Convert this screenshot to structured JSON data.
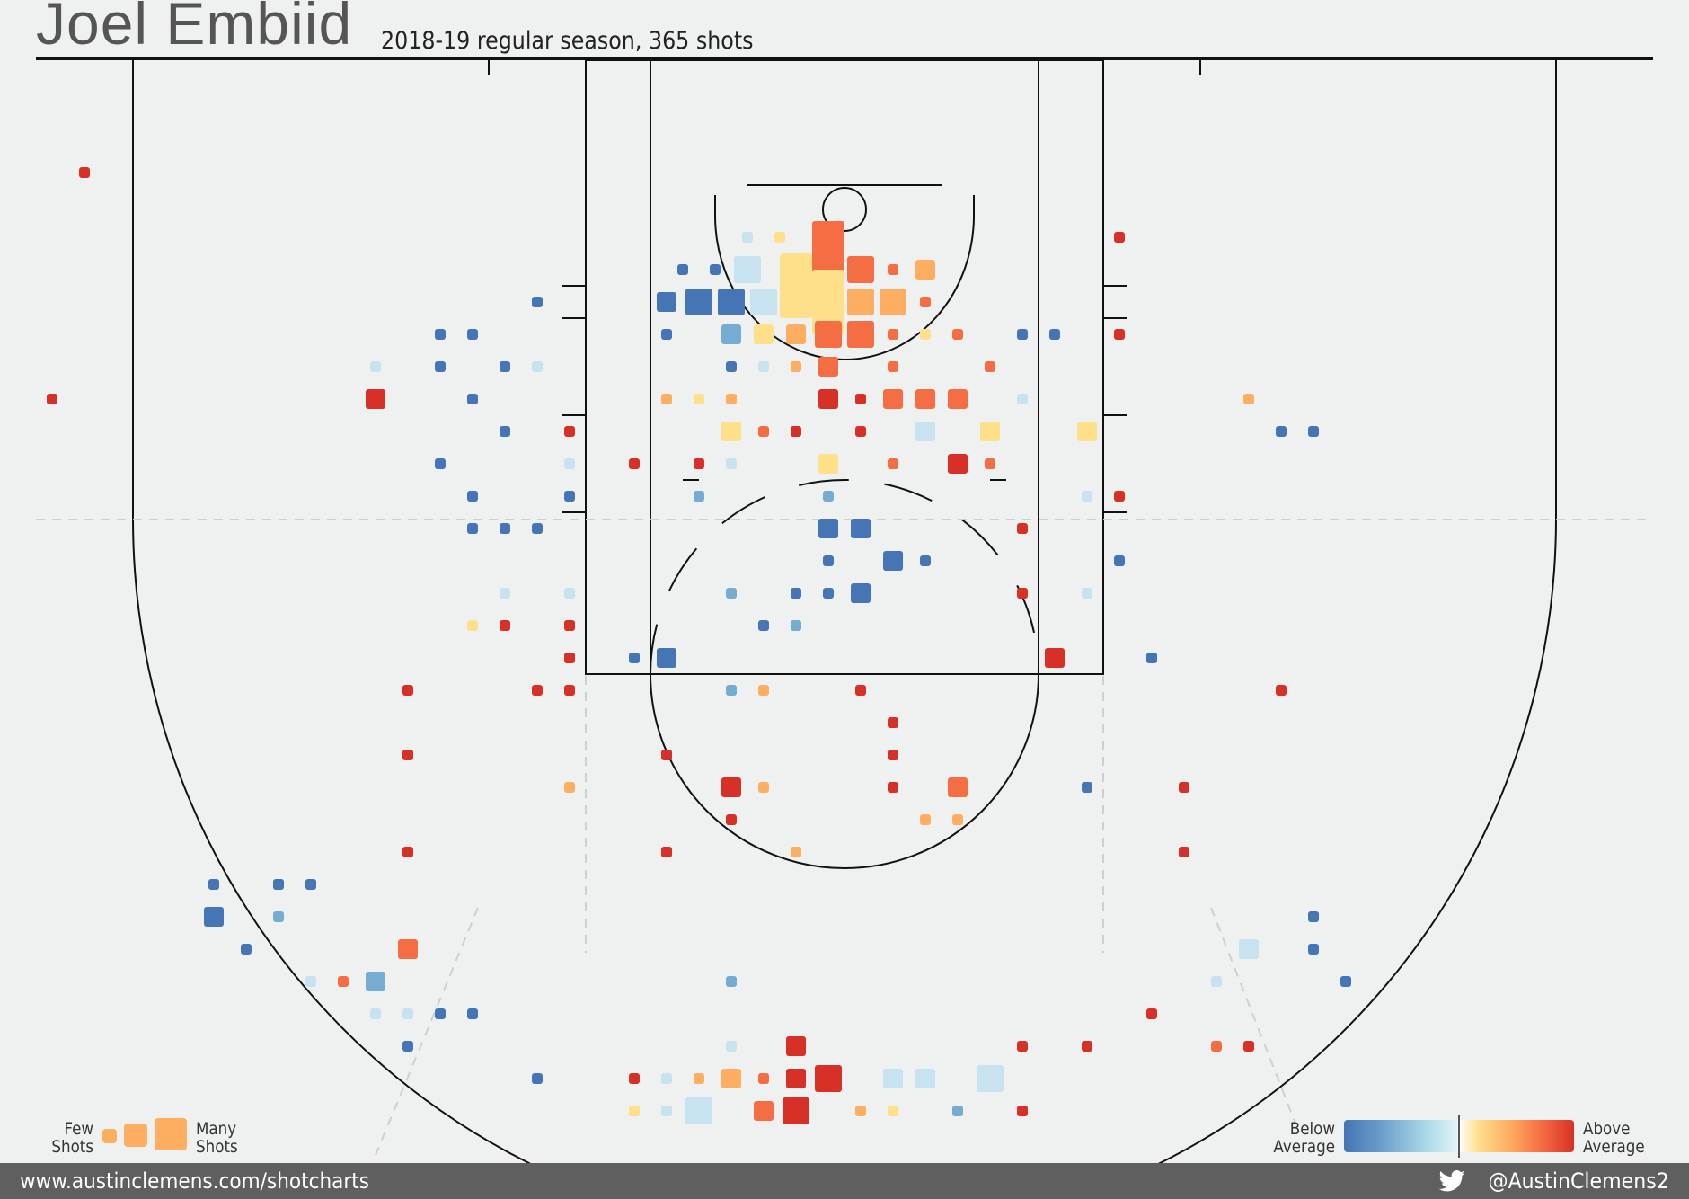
{
  "header": {
    "title": "Joel Embiid",
    "subtitle": "2018-19 regular season, 365 shots"
  },
  "footer": {
    "website": "www.austinclemens.com/shotcharts",
    "twitter": "@AustinClemens2"
  },
  "legend": {
    "size_low": "Few\nShots",
    "size_high": "Many\nShots",
    "color_low": "Below\nAverage",
    "color_high": "Above\nAverage"
  },
  "colors": {
    "vb": "#4575b4",
    "b": "#74add1",
    "lb": "#c6e3ef",
    "ly": "#fee08b",
    "o": "#fdae61",
    "ro": "#f46d43",
    "r": "#d73027"
  },
  "chart_data": {
    "type": "heatmap",
    "description_units": "court grid: x = column index (0-51), y = row index (0-30), size = 1 small to 4 large, c = shooting vs league average category",
    "color_scale": [
      "vb",
      "b",
      "lb",
      "ly",
      "o",
      "ro",
      "r"
    ],
    "cells": [
      {
        "x": 2.5,
        "y": 3,
        "s": 1,
        "c": "r"
      },
      {
        "x": 34.5,
        "y": 5,
        "s": 1,
        "c": "r"
      },
      {
        "x": 23,
        "y": 5,
        "s": 1,
        "c": "lb"
      },
      {
        "x": 24,
        "y": 5,
        "s": 1,
        "c": "ly"
      },
      {
        "x": 25.5,
        "y": 5.5,
        "s": 4,
        "c": "ro"
      },
      {
        "x": 21,
        "y": 6,
        "s": 1,
        "c": "vb"
      },
      {
        "x": 22,
        "y": 6,
        "s": 1,
        "c": "vb"
      },
      {
        "x": 23,
        "y": 6,
        "s": 3,
        "c": "lb"
      },
      {
        "x": 24.5,
        "y": 6.5,
        "s": 4,
        "c": "ly"
      },
      {
        "x": 25.5,
        "y": 7,
        "s": 4,
        "c": "ly"
      },
      {
        "x": 26.5,
        "y": 6,
        "s": 3,
        "c": "ro"
      },
      {
        "x": 27.5,
        "y": 6,
        "s": 1,
        "c": "ro"
      },
      {
        "x": 28.5,
        "y": 6,
        "s": 2,
        "c": "o"
      },
      {
        "x": 16.5,
        "y": 7,
        "s": 1,
        "c": "vb"
      },
      {
        "x": 20.5,
        "y": 7,
        "s": 2,
        "c": "vb"
      },
      {
        "x": 21.5,
        "y": 7,
        "s": 3,
        "c": "vb"
      },
      {
        "x": 22.5,
        "y": 7,
        "s": 3,
        "c": "vb"
      },
      {
        "x": 23.5,
        "y": 7,
        "s": 3,
        "c": "lb"
      },
      {
        "x": 26.5,
        "y": 7,
        "s": 3,
        "c": "o"
      },
      {
        "x": 27.5,
        "y": 7,
        "s": 3,
        "c": "o"
      },
      {
        "x": 28.5,
        "y": 7,
        "s": 1,
        "c": "ro"
      },
      {
        "x": 13.5,
        "y": 8,
        "s": 1,
        "c": "vb"
      },
      {
        "x": 14.5,
        "y": 8,
        "s": 1,
        "c": "vb"
      },
      {
        "x": 20.5,
        "y": 8,
        "s": 1,
        "c": "vb"
      },
      {
        "x": 22.5,
        "y": 8,
        "s": 2,
        "c": "b"
      },
      {
        "x": 23.5,
        "y": 8,
        "s": 2,
        "c": "ly"
      },
      {
        "x": 24.5,
        "y": 8,
        "s": 2,
        "c": "o"
      },
      {
        "x": 25.5,
        "y": 8,
        "s": 3,
        "c": "ro"
      },
      {
        "x": 26.5,
        "y": 8,
        "s": 3,
        "c": "ro"
      },
      {
        "x": 27.5,
        "y": 8,
        "s": 1,
        "c": "ro"
      },
      {
        "x": 28.5,
        "y": 8,
        "s": 1,
        "c": "ly"
      },
      {
        "x": 29.5,
        "y": 8,
        "s": 1,
        "c": "ro"
      },
      {
        "x": 31.5,
        "y": 8,
        "s": 1,
        "c": "vb"
      },
      {
        "x": 32.5,
        "y": 8,
        "s": 1,
        "c": "vb"
      },
      {
        "x": 34.5,
        "y": 8,
        "s": 1,
        "c": "r"
      },
      {
        "x": 11.5,
        "y": 9,
        "s": 1,
        "c": "lb"
      },
      {
        "x": 13.5,
        "y": 9,
        "s": 1,
        "c": "vb"
      },
      {
        "x": 15.5,
        "y": 9,
        "s": 1,
        "c": "vb"
      },
      {
        "x": 16.5,
        "y": 9,
        "s": 1,
        "c": "lb"
      },
      {
        "x": 22.5,
        "y": 9,
        "s": 1,
        "c": "vb"
      },
      {
        "x": 23.5,
        "y": 9,
        "s": 1,
        "c": "lb"
      },
      {
        "x": 24.5,
        "y": 9,
        "s": 1,
        "c": "o"
      },
      {
        "x": 25.5,
        "y": 9,
        "s": 2,
        "c": "ro"
      },
      {
        "x": 27.5,
        "y": 9,
        "s": 1,
        "c": "ro"
      },
      {
        "x": 30.5,
        "y": 9,
        "s": 1,
        "c": "ro"
      },
      {
        "x": 1.5,
        "y": 10,
        "s": 1,
        "c": "r"
      },
      {
        "x": 11.5,
        "y": 10,
        "s": 2,
        "c": "r"
      },
      {
        "x": 14.5,
        "y": 10,
        "s": 1,
        "c": "vb"
      },
      {
        "x": 20.5,
        "y": 10,
        "s": 1,
        "c": "o"
      },
      {
        "x": 21.5,
        "y": 10,
        "s": 1,
        "c": "ly"
      },
      {
        "x": 22.5,
        "y": 10,
        "s": 1,
        "c": "o"
      },
      {
        "x": 25.5,
        "y": 10,
        "s": 2,
        "c": "r"
      },
      {
        "x": 26.5,
        "y": 10,
        "s": 1,
        "c": "r"
      },
      {
        "x": 27.5,
        "y": 10,
        "s": 2,
        "c": "ro"
      },
      {
        "x": 28.5,
        "y": 10,
        "s": 2,
        "c": "ro"
      },
      {
        "x": 29.5,
        "y": 10,
        "s": 2,
        "c": "ro"
      },
      {
        "x": 31.5,
        "y": 10,
        "s": 1,
        "c": "lb"
      },
      {
        "x": 38.5,
        "y": 10,
        "s": 1,
        "c": "o"
      },
      {
        "x": 15.5,
        "y": 11,
        "s": 1,
        "c": "vb"
      },
      {
        "x": 17.5,
        "y": 11,
        "s": 1,
        "c": "r"
      },
      {
        "x": 22.5,
        "y": 11,
        "s": 2,
        "c": "ly"
      },
      {
        "x": 23.5,
        "y": 11,
        "s": 1,
        "c": "ro"
      },
      {
        "x": 24.5,
        "y": 11,
        "s": 1,
        "c": "r"
      },
      {
        "x": 26.5,
        "y": 11,
        "s": 1,
        "c": "r"
      },
      {
        "x": 28.5,
        "y": 11,
        "s": 2,
        "c": "lb"
      },
      {
        "x": 30.5,
        "y": 11,
        "s": 2,
        "c": "ly"
      },
      {
        "x": 33.5,
        "y": 11,
        "s": 2,
        "c": "ly"
      },
      {
        "x": 39.5,
        "y": 11,
        "s": 1,
        "c": "vb"
      },
      {
        "x": 40.5,
        "y": 11,
        "s": 1,
        "c": "vb"
      },
      {
        "x": 13.5,
        "y": 12,
        "s": 1,
        "c": "vb"
      },
      {
        "x": 17.5,
        "y": 12,
        "s": 1,
        "c": "lb"
      },
      {
        "x": 19.5,
        "y": 12,
        "s": 1,
        "c": "r"
      },
      {
        "x": 21.5,
        "y": 12,
        "s": 1,
        "c": "r"
      },
      {
        "x": 22.5,
        "y": 12,
        "s": 1,
        "c": "lb"
      },
      {
        "x": 25.5,
        "y": 12,
        "s": 2,
        "c": "ly"
      },
      {
        "x": 27.5,
        "y": 12,
        "s": 1,
        "c": "ro"
      },
      {
        "x": 29.5,
        "y": 12,
        "s": 2,
        "c": "r"
      },
      {
        "x": 30.5,
        "y": 12,
        "s": 1,
        "c": "ro"
      },
      {
        "x": 14.5,
        "y": 13,
        "s": 1,
        "c": "vb"
      },
      {
        "x": 17.5,
        "y": 13,
        "s": 1,
        "c": "vb"
      },
      {
        "x": 21.5,
        "y": 13,
        "s": 1,
        "c": "b"
      },
      {
        "x": 25.5,
        "y": 13,
        "s": 1,
        "c": "b"
      },
      {
        "x": 33.5,
        "y": 13,
        "s": 1,
        "c": "lb"
      },
      {
        "x": 34.5,
        "y": 13,
        "s": 1,
        "c": "r"
      },
      {
        "x": 14.5,
        "y": 14,
        "s": 1,
        "c": "vb"
      },
      {
        "x": 15.5,
        "y": 14,
        "s": 1,
        "c": "vb"
      },
      {
        "x": 16.5,
        "y": 14,
        "s": 1,
        "c": "vb"
      },
      {
        "x": 25.5,
        "y": 14,
        "s": 2,
        "c": "vb"
      },
      {
        "x": 26.5,
        "y": 14,
        "s": 2,
        "c": "vb"
      },
      {
        "x": 31.5,
        "y": 14,
        "s": 1,
        "c": "r"
      },
      {
        "x": 25.5,
        "y": 15,
        "s": 1,
        "c": "vb"
      },
      {
        "x": 27.5,
        "y": 15,
        "s": 2,
        "c": "vb"
      },
      {
        "x": 28.5,
        "y": 15,
        "s": 1,
        "c": "vb"
      },
      {
        "x": 34.5,
        "y": 15,
        "s": 1,
        "c": "vb"
      },
      {
        "x": 15.5,
        "y": 16,
        "s": 1,
        "c": "lb"
      },
      {
        "x": 17.5,
        "y": 16,
        "s": 1,
        "c": "lb"
      },
      {
        "x": 22.5,
        "y": 16,
        "s": 1,
        "c": "b"
      },
      {
        "x": 24.5,
        "y": 16,
        "s": 1,
        "c": "vb"
      },
      {
        "x": 25.5,
        "y": 16,
        "s": 1,
        "c": "vb"
      },
      {
        "x": 26.5,
        "y": 16,
        "s": 2,
        "c": "vb"
      },
      {
        "x": 31.5,
        "y": 16,
        "s": 1,
        "c": "r"
      },
      {
        "x": 33.5,
        "y": 16,
        "s": 1,
        "c": "lb"
      },
      {
        "x": 14.5,
        "y": 17,
        "s": 1,
        "c": "ly"
      },
      {
        "x": 15.5,
        "y": 17,
        "s": 1,
        "c": "r"
      },
      {
        "x": 17.5,
        "y": 17,
        "s": 1,
        "c": "r"
      },
      {
        "x": 23.5,
        "y": 17,
        "s": 1,
        "c": "vb"
      },
      {
        "x": 24.5,
        "y": 17,
        "s": 1,
        "c": "b"
      },
      {
        "x": 17.5,
        "y": 18,
        "s": 1,
        "c": "r"
      },
      {
        "x": 19.5,
        "y": 18,
        "s": 1,
        "c": "vb"
      },
      {
        "x": 20.5,
        "y": 18,
        "s": 2,
        "c": "vb"
      },
      {
        "x": 32.5,
        "y": 18,
        "s": 2,
        "c": "r"
      },
      {
        "x": 35.5,
        "y": 18,
        "s": 1,
        "c": "vb"
      },
      {
        "x": 12.5,
        "y": 19,
        "s": 1,
        "c": "r"
      },
      {
        "x": 16.5,
        "y": 19,
        "s": 1,
        "c": "r"
      },
      {
        "x": 17.5,
        "y": 19,
        "s": 1,
        "c": "r"
      },
      {
        "x": 22.5,
        "y": 19,
        "s": 1,
        "c": "b"
      },
      {
        "x": 23.5,
        "y": 19,
        "s": 1,
        "c": "o"
      },
      {
        "x": 26.5,
        "y": 19,
        "s": 1,
        "c": "r"
      },
      {
        "x": 39.5,
        "y": 19,
        "s": 1,
        "c": "r"
      },
      {
        "x": 27.5,
        "y": 20,
        "s": 1,
        "c": "r"
      },
      {
        "x": 12.5,
        "y": 21,
        "s": 1,
        "c": "r"
      },
      {
        "x": 20.5,
        "y": 21,
        "s": 1,
        "c": "r"
      },
      {
        "x": 27.5,
        "y": 21,
        "s": 1,
        "c": "r"
      },
      {
        "x": 17.5,
        "y": 22,
        "s": 1,
        "c": "o"
      },
      {
        "x": 22.5,
        "y": 22,
        "s": 2,
        "c": "r"
      },
      {
        "x": 23.5,
        "y": 22,
        "s": 1,
        "c": "o"
      },
      {
        "x": 27.5,
        "y": 22,
        "s": 1,
        "c": "r"
      },
      {
        "x": 29.5,
        "y": 22,
        "s": 2,
        "c": "ro"
      },
      {
        "x": 33.5,
        "y": 22,
        "s": 1,
        "c": "vb"
      },
      {
        "x": 36.5,
        "y": 22,
        "s": 1,
        "c": "r"
      },
      {
        "x": 22.5,
        "y": 23,
        "s": 1,
        "c": "r"
      },
      {
        "x": 28.5,
        "y": 23,
        "s": 1,
        "c": "o"
      },
      {
        "x": 29.5,
        "y": 23,
        "s": 1,
        "c": "o"
      },
      {
        "x": 12.5,
        "y": 24,
        "s": 1,
        "c": "r"
      },
      {
        "x": 20.5,
        "y": 24,
        "s": 1,
        "c": "r"
      },
      {
        "x": 24.5,
        "y": 24,
        "s": 1,
        "c": "o"
      },
      {
        "x": 36.5,
        "y": 24,
        "s": 1,
        "c": "r"
      },
      {
        "x": 6.5,
        "y": 25,
        "s": 1,
        "c": "vb"
      },
      {
        "x": 8.5,
        "y": 25,
        "s": 1,
        "c": "vb"
      },
      {
        "x": 9.5,
        "y": 25,
        "s": 1,
        "c": "vb"
      },
      {
        "x": 6.5,
        "y": 26,
        "s": 2,
        "c": "vb"
      },
      {
        "x": 8.5,
        "y": 26,
        "s": 1,
        "c": "b"
      },
      {
        "x": 40.5,
        "y": 26,
        "s": 1,
        "c": "vb"
      },
      {
        "x": 7.5,
        "y": 27,
        "s": 1,
        "c": "vb"
      },
      {
        "x": 12.5,
        "y": 27,
        "s": 2,
        "c": "ro"
      },
      {
        "x": 38.5,
        "y": 27,
        "s": 2,
        "c": "lb"
      },
      {
        "x": 40.5,
        "y": 27,
        "s": 1,
        "c": "vb"
      },
      {
        "x": 9.5,
        "y": 28,
        "s": 1,
        "c": "lb"
      },
      {
        "x": 10.5,
        "y": 28,
        "s": 1,
        "c": "ro"
      },
      {
        "x": 11.5,
        "y": 28,
        "s": 2,
        "c": "b"
      },
      {
        "x": 22.5,
        "y": 28,
        "s": 1,
        "c": "b"
      },
      {
        "x": 37.5,
        "y": 28,
        "s": 1,
        "c": "lb"
      },
      {
        "x": 41.5,
        "y": 28,
        "s": 1,
        "c": "vb"
      },
      {
        "x": 11.5,
        "y": 29,
        "s": 1,
        "c": "lb"
      },
      {
        "x": 12.5,
        "y": 29,
        "s": 1,
        "c": "lb"
      },
      {
        "x": 13.5,
        "y": 29,
        "s": 1,
        "c": "vb"
      },
      {
        "x": 14.5,
        "y": 29,
        "s": 1,
        "c": "vb"
      },
      {
        "x": 35.5,
        "y": 29,
        "s": 1,
        "c": "r"
      },
      {
        "x": 12.5,
        "y": 30,
        "s": 1,
        "c": "vb"
      },
      {
        "x": 22.5,
        "y": 30,
        "s": 1,
        "c": "lb"
      },
      {
        "x": 24.5,
        "y": 30,
        "s": 2,
        "c": "r"
      },
      {
        "x": 31.5,
        "y": 30,
        "s": 1,
        "c": "r"
      },
      {
        "x": 33.5,
        "y": 30,
        "s": 1,
        "c": "r"
      },
      {
        "x": 37.5,
        "y": 30,
        "s": 1,
        "c": "ro"
      },
      {
        "x": 38.5,
        "y": 30,
        "s": 1,
        "c": "r"
      },
      {
        "x": 16.5,
        "y": 31,
        "s": 1,
        "c": "vb"
      },
      {
        "x": 19.5,
        "y": 31,
        "s": 1,
        "c": "r"
      },
      {
        "x": 20.5,
        "y": 31,
        "s": 1,
        "c": "lb"
      },
      {
        "x": 21.5,
        "y": 31,
        "s": 1,
        "c": "o"
      },
      {
        "x": 22.5,
        "y": 31,
        "s": 2,
        "c": "o"
      },
      {
        "x": 23.5,
        "y": 31,
        "s": 1,
        "c": "ro"
      },
      {
        "x": 24.5,
        "y": 31,
        "s": 2,
        "c": "r"
      },
      {
        "x": 25.5,
        "y": 31,
        "s": 3,
        "c": "r"
      },
      {
        "x": 27.5,
        "y": 31,
        "s": 2,
        "c": "lb"
      },
      {
        "x": 28.5,
        "y": 31,
        "s": 2,
        "c": "lb"
      },
      {
        "x": 30.5,
        "y": 31,
        "s": 3,
        "c": "lb"
      },
      {
        "x": 19.5,
        "y": 32,
        "s": 1,
        "c": "ly"
      },
      {
        "x": 20.5,
        "y": 32,
        "s": 1,
        "c": "lb"
      },
      {
        "x": 21.5,
        "y": 32,
        "s": 3,
        "c": "lb"
      },
      {
        "x": 23.5,
        "y": 32,
        "s": 2,
        "c": "ro"
      },
      {
        "x": 24.5,
        "y": 32,
        "s": 3,
        "c": "r"
      },
      {
        "x": 26.5,
        "y": 32,
        "s": 1,
        "c": "o"
      },
      {
        "x": 27.5,
        "y": 32,
        "s": 1,
        "c": "ly"
      },
      {
        "x": 29.5,
        "y": 32,
        "s": 1,
        "c": "b"
      },
      {
        "x": 31.5,
        "y": 32,
        "s": 1,
        "c": "r"
      }
    ]
  }
}
